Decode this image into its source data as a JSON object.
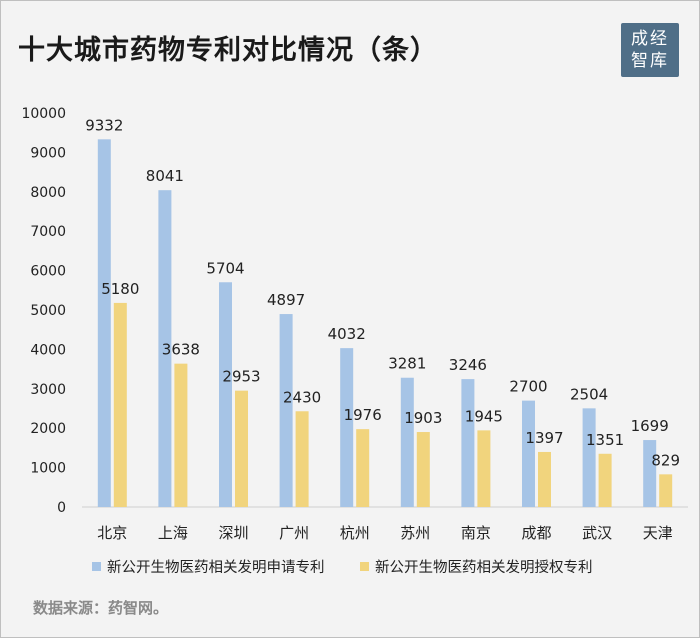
{
  "page": {
    "title": "十大城市药物专利对比情况（条）",
    "logo_lines": [
      "成经",
      "智库"
    ],
    "source": "数据来源：药智网。"
  },
  "chart_data": {
    "type": "bar",
    "categories": [
      "北京",
      "上海",
      "深圳",
      "广州",
      "杭州",
      "苏州",
      "南京",
      "成都",
      "武汉",
      "天津"
    ],
    "series": [
      {
        "name": "新公开生物医药相关发明申请专利",
        "color": "#a6c4e6",
        "values": [
          9332,
          8041,
          5704,
          4897,
          4032,
          3281,
          3246,
          2700,
          2504,
          1699
        ]
      },
      {
        "name": "新公开生物医药相关发明授权专利",
        "color": "#f1d47d",
        "values": [
          5180,
          3638,
          2953,
          2430,
          1976,
          1903,
          1945,
          1397,
          1351,
          829
        ]
      }
    ],
    "ylim": [
      0,
      10000
    ],
    "yticks": [
      0,
      1000,
      2000,
      3000,
      4000,
      5000,
      6000,
      7000,
      8000,
      9000,
      10000
    ],
    "grid": false,
    "legend_position": "bottom"
  }
}
